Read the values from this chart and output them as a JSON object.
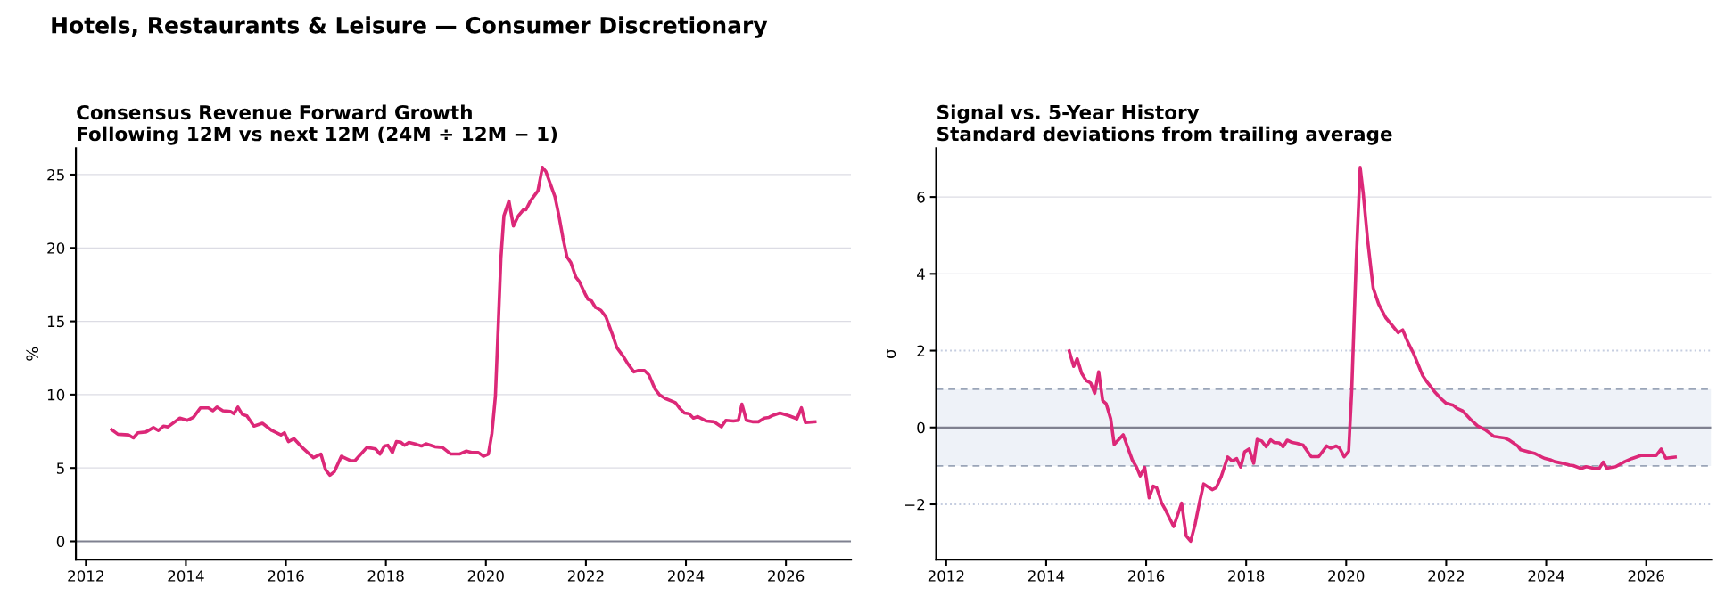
{
  "chart_data": [
    {
      "type": "line",
      "title": "Consensus Revenue Forward Growth",
      "annotations": [
        "Hotels, Restaurants & Leisure — Consumer Discretionary"
      ],
      "subtitle": "Following 12M vs next 12M (24M ÷ 12M − 1)",
      "ylabel": "%",
      "xlim": [
        2011.8,
        2027.3
      ],
      "xticks": [
        2012,
        2014,
        2016,
        2018,
        2020,
        2022,
        2024,
        2026
      ],
      "ylim": [
        -1.25,
        26.8
      ],
      "yticks": [
        0,
        5,
        10,
        15,
        20,
        25
      ],
      "grid": "y",
      "line_style": "solid",
      "ref_lines": [
        {
          "axis": "y",
          "value": 0,
          "label": null,
          "color": "#7f8190",
          "line_style": "solid"
        }
      ],
      "series": [
        {
          "color": "#dc2878",
          "x": [
            2012.52,
            2012.64,
            2012.85,
            2012.95,
            2013.04,
            2013.2,
            2013.35,
            2013.45,
            2013.55,
            2013.64,
            2013.88,
            2014.03,
            2014.15,
            2014.29,
            2014.45,
            2014.54,
            2014.62,
            2014.74,
            2014.89,
            2014.96,
            2015.04,
            2015.13,
            2015.22,
            2015.36,
            2015.53,
            2015.72,
            2015.9,
            2015.97,
            2016.05,
            2016.16,
            2016.31,
            2016.55,
            2016.7,
            2016.79,
            2016.88,
            2016.97,
            2017.11,
            2017.29,
            2017.38,
            2017.62,
            2017.79,
            2017.88,
            2017.97,
            2018.04,
            2018.13,
            2018.21,
            2018.3,
            2018.37,
            2018.46,
            2018.62,
            2018.71,
            2018.8,
            2018.98,
            2019.13,
            2019.3,
            2019.47,
            2019.61,
            2019.73,
            2019.85,
            2019.95,
            2020.05,
            2020.12,
            2020.19,
            2020.25,
            2020.3,
            2020.36,
            2020.46,
            2020.55,
            2020.65,
            2020.75,
            2020.8,
            2020.89,
            2021.04,
            2021.13,
            2021.2,
            2021.38,
            2021.46,
            2021.54,
            2021.62,
            2021.7,
            2021.8,
            2021.87,
            2021.98,
            2022.04,
            2022.11,
            2022.19,
            2022.3,
            2022.4,
            2022.52,
            2022.62,
            2022.75,
            2022.84,
            2022.96,
            2023.05,
            2023.17,
            2023.26,
            2023.38,
            2023.47,
            2023.58,
            2023.79,
            2023.88,
            2023.97,
            2024.06,
            2024.15,
            2024.24,
            2024.41,
            2024.56,
            2024.71,
            2024.8,
            2024.95,
            2025.05,
            2025.12,
            2025.21,
            2025.33,
            2025.45,
            2025.57,
            2025.66,
            2025.75,
            2025.88,
            2026.07,
            2026.22,
            2026.31,
            2026.39,
            2026.58
          ],
          "values": [
            7.6,
            7.3,
            7.25,
            7.05,
            7.4,
            7.45,
            7.75,
            7.55,
            7.85,
            7.8,
            8.4,
            8.25,
            8.45,
            9.1,
            9.1,
            8.9,
            9.15,
            8.9,
            8.85,
            8.7,
            9.15,
            8.65,
            8.55,
            7.85,
            8.05,
            7.55,
            7.25,
            7.4,
            6.8,
            7.0,
            6.45,
            5.7,
            5.95,
            4.9,
            4.5,
            4.75,
            5.8,
            5.5,
            5.5,
            6.4,
            6.3,
            5.95,
            6.5,
            6.55,
            6.05,
            6.8,
            6.75,
            6.55,
            6.75,
            6.6,
            6.5,
            6.65,
            6.45,
            6.4,
            5.95,
            5.95,
            6.15,
            6.05,
            6.05,
            5.8,
            5.95,
            7.35,
            9.9,
            15.0,
            19.3,
            22.2,
            23.2,
            21.5,
            22.2,
            22.6,
            22.6,
            23.2,
            23.9,
            25.5,
            25.2,
            23.5,
            22.2,
            20.7,
            19.4,
            19.0,
            18.0,
            17.7,
            16.9,
            16.5,
            16.4,
            15.95,
            15.75,
            15.3,
            14.2,
            13.2,
            12.6,
            12.1,
            11.55,
            11.65,
            11.65,
            11.35,
            10.4,
            10.0,
            9.75,
            9.45,
            9.05,
            8.75,
            8.7,
            8.4,
            8.5,
            8.2,
            8.15,
            7.8,
            8.25,
            8.2,
            8.25,
            9.35,
            8.25,
            8.15,
            8.15,
            8.4,
            8.45,
            8.6,
            8.75,
            8.55,
            8.35,
            9.1,
            8.1,
            8.15
          ]
        }
      ]
    },
    {
      "type": "line",
      "title": "Signal vs. 5-Year History",
      "subtitle": "Standard deviations from trailing average",
      "ylabel": "σ",
      "xlim": [
        2011.8,
        2027.3
      ],
      "xticks": [
        2012,
        2014,
        2016,
        2018,
        2020,
        2022,
        2024,
        2026
      ],
      "ylim": [
        -3.44,
        7.27
      ],
      "yticks": [
        {
          "value": -2,
          "label": "−2"
        },
        0,
        2,
        4,
        6
      ],
      "grid": "y",
      "line_style": "solid",
      "bands": [
        {
          "axis": "y",
          "from": -1,
          "to": 1,
          "label": null,
          "color": "#eef2f8"
        }
      ],
      "ref_lines": [
        {
          "axis": "y",
          "value": 0,
          "label": null,
          "color": "#7f8190",
          "line_style": "solid"
        },
        {
          "axis": "y",
          "value": 1,
          "label": null,
          "color": "#9aa5b8",
          "line_style": "dashed"
        },
        {
          "axis": "y",
          "value": -1,
          "label": null,
          "color": "#9aa5b8",
          "line_style": "dashed"
        },
        {
          "axis": "y",
          "value": 2,
          "label": null,
          "color": "#c5cde0",
          "line_style": "dotted"
        },
        {
          "axis": "y",
          "value": -2,
          "label": null,
          "color": "#c5cde0",
          "line_style": "dotted"
        }
      ],
      "series": [
        {
          "color": "#dc2878",
          "x": [
            2014.46,
            2014.55,
            2014.62,
            2014.71,
            2014.8,
            2014.89,
            2014.97,
            2015.05,
            2015.13,
            2015.2,
            2015.29,
            2015.36,
            2015.54,
            2015.72,
            2015.81,
            2015.88,
            2015.97,
            2016.06,
            2016.14,
            2016.21,
            2016.31,
            2016.38,
            2016.55,
            2016.71,
            2016.8,
            2016.89,
            2016.98,
            2017.07,
            2017.15,
            2017.32,
            2017.4,
            2017.5,
            2017.63,
            2017.72,
            2017.81,
            2017.89,
            2017.97,
            2018.06,
            2018.15,
            2018.22,
            2018.31,
            2018.4,
            2018.49,
            2018.56,
            2018.66,
            2018.74,
            2018.82,
            2018.92,
            2019.01,
            2019.14,
            2019.3,
            2019.45,
            2019.61,
            2019.69,
            2019.8,
            2019.87,
            2019.96,
            2020.05,
            2020.11,
            2020.2,
            2020.28,
            2020.34,
            2020.43,
            2020.54,
            2020.65,
            2020.79,
            2020.88,
            2021.04,
            2021.13,
            2021.23,
            2021.35,
            2021.53,
            2021.62,
            2021.77,
            2021.89,
            2022.0,
            2022.14,
            2022.21,
            2022.33,
            2022.48,
            2022.63,
            2022.78,
            2022.95,
            2023.16,
            2023.25,
            2023.43,
            2023.49,
            2023.78,
            2023.96,
            2024.08,
            2024.17,
            2024.32,
            2024.47,
            2024.54,
            2024.7,
            2024.8,
            2024.94,
            2025.06,
            2025.14,
            2025.21,
            2025.39,
            2025.57,
            2025.71,
            2025.89,
            2026.04,
            2026.2,
            2026.3,
            2026.39,
            2026.58
          ],
          "values": [
            1.99,
            1.59,
            1.79,
            1.41,
            1.22,
            1.16,
            0.89,
            1.45,
            0.7,
            0.62,
            0.23,
            -0.44,
            -0.19,
            -0.84,
            -1.04,
            -1.26,
            -1.04,
            -1.83,
            -1.53,
            -1.57,
            -1.97,
            -2.13,
            -2.58,
            -1.97,
            -2.82,
            -2.96,
            -2.51,
            -1.93,
            -1.47,
            -1.62,
            -1.57,
            -1.28,
            -0.77,
            -0.87,
            -0.81,
            -1.03,
            -0.63,
            -0.56,
            -0.93,
            -0.31,
            -0.35,
            -0.5,
            -0.32,
            -0.39,
            -0.4,
            -0.5,
            -0.33,
            -0.39,
            -0.41,
            -0.46,
            -0.76,
            -0.76,
            -0.48,
            -0.54,
            -0.48,
            -0.54,
            -0.76,
            -0.62,
            0.93,
            4.33,
            6.77,
            6.11,
            4.87,
            3.63,
            3.21,
            2.86,
            2.72,
            2.47,
            2.54,
            2.23,
            1.92,
            1.35,
            1.18,
            0.93,
            0.76,
            0.63,
            0.58,
            0.5,
            0.43,
            0.22,
            0.04,
            -0.06,
            -0.23,
            -0.27,
            -0.32,
            -0.48,
            -0.58,
            -0.68,
            -0.8,
            -0.84,
            -0.89,
            -0.93,
            -0.98,
            -0.99,
            -1.07,
            -1.02,
            -1.06,
            -1.07,
            -0.9,
            -1.06,
            -1.02,
            -0.89,
            -0.81,
            -0.73,
            -0.73,
            -0.73,
            -0.56,
            -0.8,
            -0.77
          ]
        }
      ]
    }
  ]
}
